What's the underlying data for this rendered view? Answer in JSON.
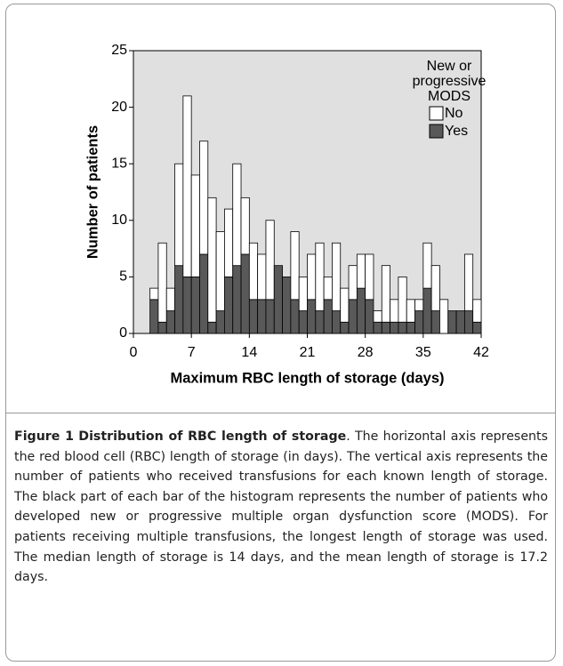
{
  "chart_data": {
    "type": "histogram",
    "bins": [
      2,
      3,
      4,
      5,
      6,
      7,
      8,
      9,
      10,
      11,
      12,
      13,
      14,
      15,
      16,
      17,
      18,
      19,
      20,
      21,
      22,
      23,
      24,
      25,
      26,
      27,
      28,
      29,
      30,
      31,
      32,
      33,
      34,
      35,
      36,
      37,
      38,
      39,
      40,
      41,
      42
    ],
    "series": [
      {
        "name": "No",
        "color": "#ffffff",
        "values": [
          1,
          7,
          2,
          9,
          16,
          9,
          10,
          11,
          7,
          6,
          9,
          5,
          5,
          4,
          7,
          0,
          0,
          6,
          3,
          4,
          6,
          2,
          6,
          3,
          3,
          3,
          4,
          1,
          5,
          2,
          4,
          2,
          1,
          4,
          4,
          3,
          0,
          0,
          5,
          2
        ]
      },
      {
        "name": "Yes",
        "color": "#595959",
        "values": [
          3,
          1,
          2,
          6,
          5,
          5,
          7,
          1,
          2,
          5,
          6,
          7,
          3,
          3,
          3,
          6,
          5,
          3,
          2,
          3,
          2,
          3,
          2,
          1,
          3,
          4,
          3,
          1,
          1,
          1,
          1,
          1,
          2,
          4,
          2,
          0,
          2,
          2,
          2,
          1
        ]
      }
    ],
    "stacked": true,
    "legend_title": [
      "New or",
      "progressive",
      "MODS"
    ],
    "xlabel": "Maximum RBC length of storage (days)",
    "ylabel": "Number of patients",
    "xlim": [
      0,
      42
    ],
    "xticks": [
      0,
      7,
      14,
      21,
      28,
      35,
      42
    ],
    "ylim": [
      0,
      25
    ],
    "yticks": [
      0,
      5,
      10,
      15,
      20,
      25
    ],
    "background": "#e0e0e0"
  },
  "caption": {
    "label": "Figure 1",
    "title": "Distribution of RBC length of storage",
    "text": ". The horizontal axis represents the red blood cell (RBC) length of storage (in days). The vertical axis represents the number of patients who received transfusions for each known length of storage. The black part of each bar of the histogram represents the number of patients who developed new or progressive multiple organ dysfunction score (MODS). For patients receiving multiple transfusions, the longest length of storage was used. The median length of storage is 14 days, and the mean length of storage is 17.2 days."
  }
}
